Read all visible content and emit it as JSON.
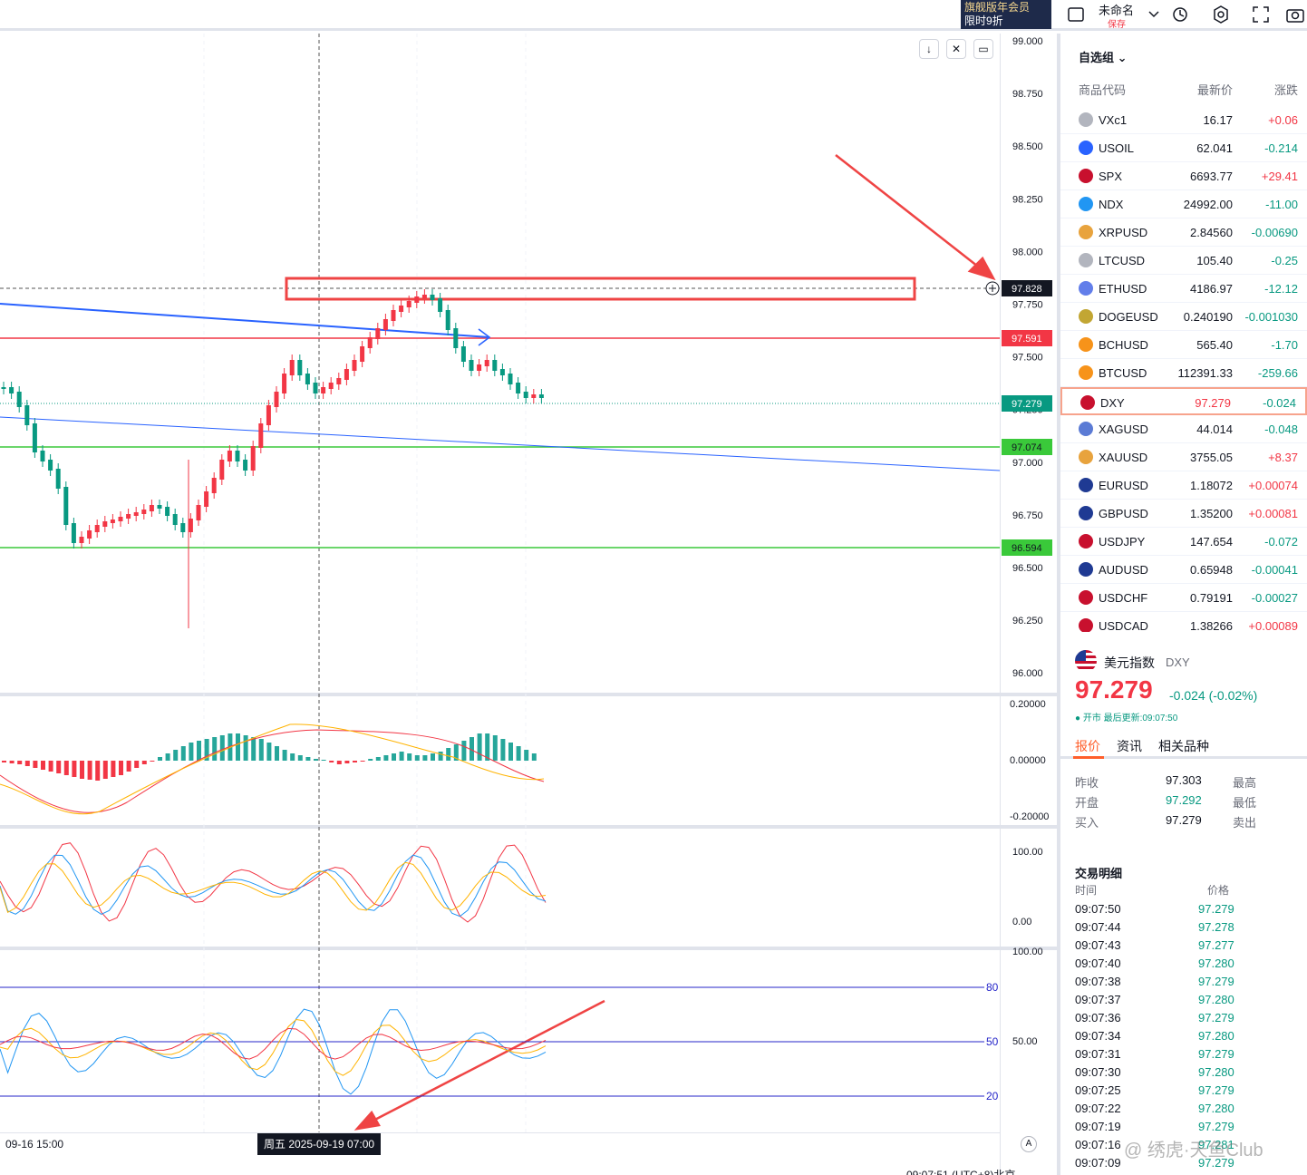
{
  "topbar": {
    "promo_line1": "旗舰版年会员",
    "promo_line2": "限时9折",
    "layout_name": "未命名",
    "save_status": "保存"
  },
  "chart": {
    "symbol": "DXY",
    "price_axis": [
      "99.000",
      "98.750",
      "98.500",
      "98.250",
      "98.000",
      "97.750",
      "97.500",
      "97.250",
      "97.000",
      "96.750",
      "96.500",
      "96.250",
      "96.000"
    ],
    "price_labels": {
      "cursor": "97.828",
      "red": "97.591",
      "last": "97.279",
      "green1": "97.074",
      "green2": "96.594"
    },
    "macd_axis": [
      "0.20000",
      "0.00000",
      "-0.20000"
    ],
    "osc1_axis": [
      "100.00",
      "0.00"
    ],
    "osc2_axis": [
      "100.00",
      "50.00"
    ],
    "osc2_levels": [
      "80",
      "50",
      "20"
    ],
    "time_left": "09-16 15:00",
    "time_cursor": "周五 2025-09-19  07:00",
    "auto": "A",
    "clock": "09:07:51 (UTC+8)北京"
  },
  "watchlist": {
    "title": "自选组",
    "col_symbol": "商品代码",
    "col_last": "最新价",
    "col_change": "涨跌",
    "rows": [
      {
        "sym": "VXc1",
        "last": "16.17",
        "chg": "+0.06",
        "dir": "up",
        "icon": "#b2b5be"
      },
      {
        "sym": "USOIL",
        "last": "62.041",
        "chg": "-0.214",
        "dir": "dn",
        "icon": "#2962ff"
      },
      {
        "sym": "SPX",
        "last": "6693.77",
        "chg": "+29.41",
        "dir": "up",
        "icon": "#c8102e"
      },
      {
        "sym": "NDX",
        "last": "24992.00",
        "chg": "-11.00",
        "dir": "dn",
        "icon": "#2196f3"
      },
      {
        "sym": "XRPUSD",
        "last": "2.84560",
        "chg": "-0.00690",
        "dir": "dn",
        "icon": "#e8a33d"
      },
      {
        "sym": "LTCUSD",
        "last": "105.40",
        "chg": "-0.25",
        "dir": "dn",
        "icon": "#b2b5be"
      },
      {
        "sym": "ETHUSD",
        "last": "4186.97",
        "chg": "-12.12",
        "dir": "dn",
        "icon": "#627eea"
      },
      {
        "sym": "DOGEUSD",
        "last": "0.240190",
        "chg": "-0.001030",
        "dir": "dn",
        "icon": "#c2a633"
      },
      {
        "sym": "BCHUSD",
        "last": "565.40",
        "chg": "-1.70",
        "dir": "dn",
        "icon": "#f7931a"
      },
      {
        "sym": "BTCUSD",
        "last": "112391.33",
        "chg": "-259.66",
        "dir": "dn",
        "icon": "#f7931a"
      },
      {
        "sym": "DXY",
        "last": "97.279",
        "chg": "-0.024",
        "dir": "dn",
        "icon": "#c8102e",
        "sel": true
      },
      {
        "sym": "XAGUSD",
        "last": "44.014",
        "chg": "-0.048",
        "dir": "dn",
        "icon": "#5b7bd5"
      },
      {
        "sym": "XAUUSD",
        "last": "3755.05",
        "chg": "+8.37",
        "dir": "up",
        "icon": "#e8a33d"
      },
      {
        "sym": "EURUSD",
        "last": "1.18072",
        "chg": "+0.00074",
        "dir": "up",
        "icon": "#1f3a93"
      },
      {
        "sym": "GBPUSD",
        "last": "1.35200",
        "chg": "+0.00081",
        "dir": "up",
        "icon": "#1f3a93"
      },
      {
        "sym": "USDJPY",
        "last": "147.654",
        "chg": "-0.072",
        "dir": "dn",
        "icon": "#c8102e"
      },
      {
        "sym": "AUDUSD",
        "last": "0.65948",
        "chg": "-0.00041",
        "dir": "dn",
        "icon": "#1f3a93"
      },
      {
        "sym": "USDCHF",
        "last": "0.79191",
        "chg": "-0.00027",
        "dir": "dn",
        "icon": "#c8102e"
      },
      {
        "sym": "USDCAD",
        "last": "1.38266",
        "chg": "+0.00089",
        "dir": "up",
        "icon": "#c8102e"
      }
    ]
  },
  "detail": {
    "name": "美元指数",
    "symbol": "DXY",
    "price": "97.279",
    "change": "-0.024 (-0.02%)",
    "status": "● 开市 最后更新:09:07:50",
    "tabs": [
      "报价",
      "资讯",
      "相关品种"
    ],
    "stats": [
      {
        "k": "昨收",
        "v": "97.303",
        "v_color": "#131722",
        "k2": "最高"
      },
      {
        "k": "开盘",
        "v": "97.292",
        "v_color": "#089981",
        "k2": "最低"
      },
      {
        "k": "买入",
        "v": "97.279",
        "v_color": "#131722",
        "k2": "卖出"
      }
    ],
    "trades_title": "交易明细",
    "trades_col_time": "时间",
    "trades_col_price": "价格",
    "trades": [
      {
        "t": "09:07:50",
        "p": "97.279"
      },
      {
        "t": "09:07:44",
        "p": "97.278"
      },
      {
        "t": "09:07:43",
        "p": "97.277"
      },
      {
        "t": "09:07:40",
        "p": "97.280"
      },
      {
        "t": "09:07:38",
        "p": "97.279"
      },
      {
        "t": "09:07:37",
        "p": "97.280"
      },
      {
        "t": "09:07:36",
        "p": "97.279"
      },
      {
        "t": "09:07:34",
        "p": "97.280"
      },
      {
        "t": "09:07:31",
        "p": "97.279"
      },
      {
        "t": "09:07:30",
        "p": "97.280"
      },
      {
        "t": "09:07:25",
        "p": "97.279"
      },
      {
        "t": "09:07:22",
        "p": "97.280"
      },
      {
        "t": "09:07:19",
        "p": "97.279"
      },
      {
        "t": "09:07:16",
        "p": "97.281"
      },
      {
        "t": "09:07:09",
        "p": "97.279"
      }
    ]
  },
  "watermark": "@ 绣虎·天鱼Club",
  "colors": {
    "up": "#f23645",
    "down": "#089981",
    "accent": "#ff5e2a"
  }
}
